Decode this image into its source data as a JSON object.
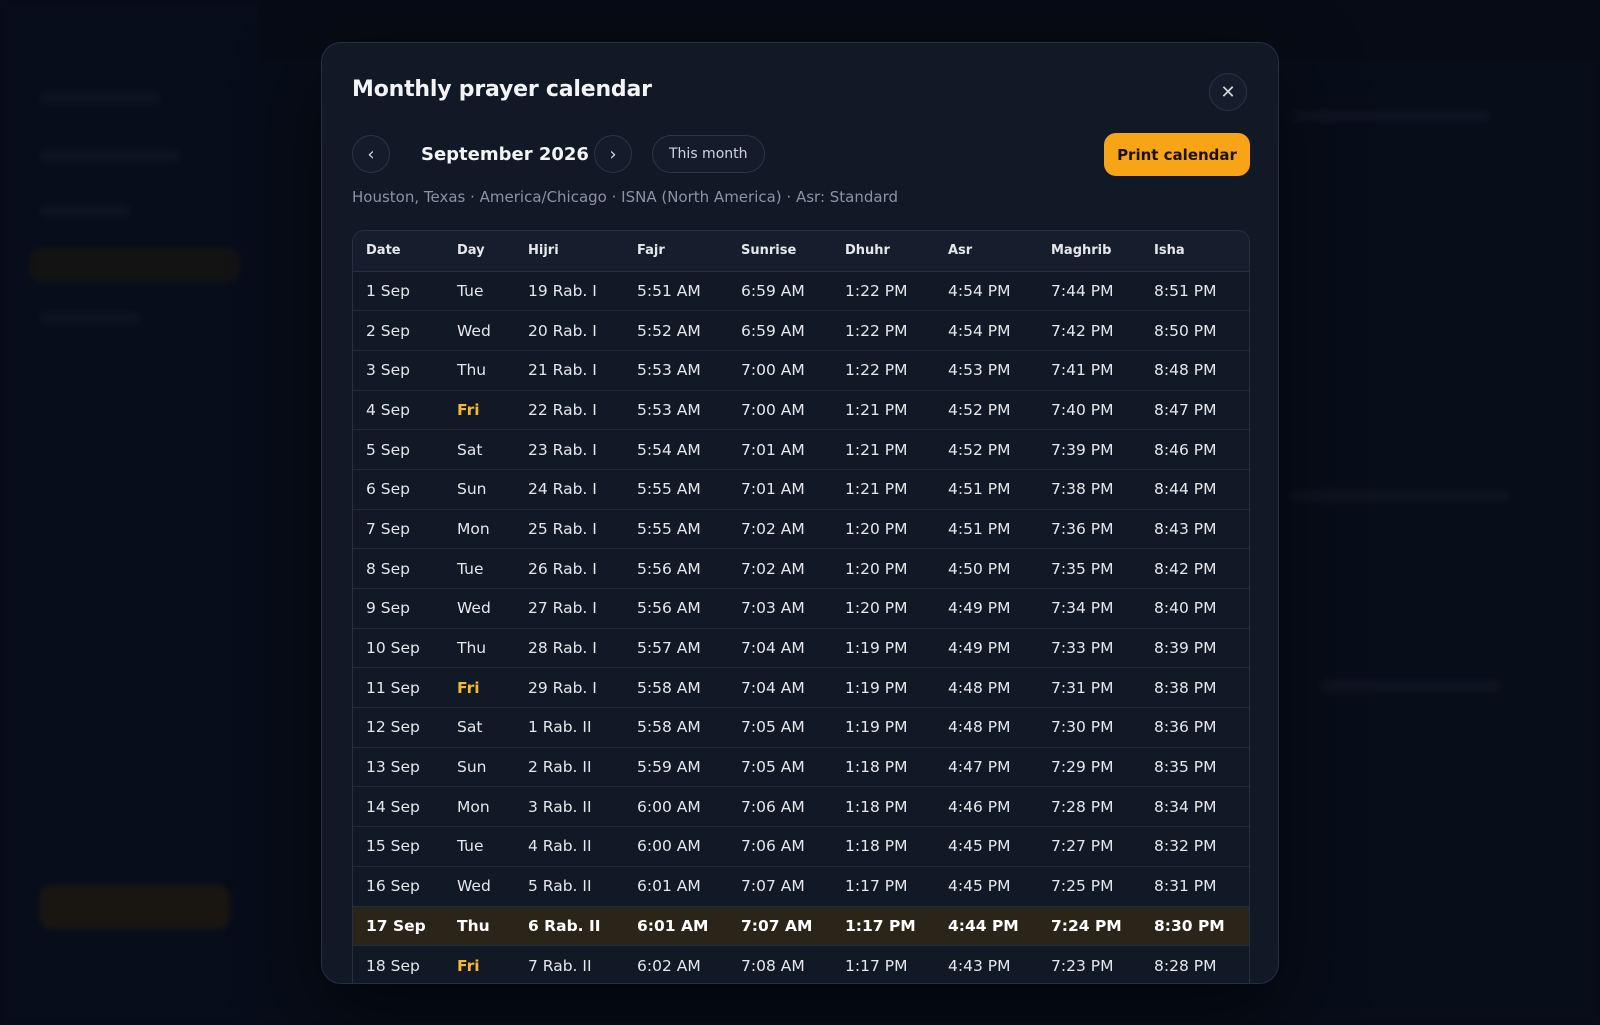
{
  "modal": {
    "title": "Monthly prayer calendar",
    "close_icon": "close-icon",
    "prev_icon": "chevron-left-icon",
    "next_icon": "chevron-right-icon",
    "prev_glyph": "‹",
    "next_glyph": "›",
    "close_glyph": "✕",
    "month_label": "September 2026",
    "this_month_label": "This month",
    "print_label": "Print calendar",
    "meta": "Houston, Texas · America/Chicago · ISNA (North America) · Asr: Standard"
  },
  "colors": {
    "accent": "#f7a416",
    "friday": "#f5b82e",
    "today_row": "#2a2518",
    "modal_bg": "#111826"
  },
  "table": {
    "columns": [
      "Date",
      "Day",
      "Hijri",
      "Fajr",
      "Sunrise",
      "Dhuhr",
      "Asr",
      "Maghrib",
      "Isha"
    ],
    "today_index": 16,
    "rows": [
      [
        "1 Sep",
        "Tue",
        "19 Rab. I",
        "5:51 AM",
        "6:59 AM",
        "1:22 PM",
        "4:54 PM",
        "7:44 PM",
        "8:51 PM"
      ],
      [
        "2 Sep",
        "Wed",
        "20 Rab. I",
        "5:52 AM",
        "6:59 AM",
        "1:22 PM",
        "4:54 PM",
        "7:42 PM",
        "8:50 PM"
      ],
      [
        "3 Sep",
        "Thu",
        "21 Rab. I",
        "5:53 AM",
        "7:00 AM",
        "1:22 PM",
        "4:53 PM",
        "7:41 PM",
        "8:48 PM"
      ],
      [
        "4 Sep",
        "Fri",
        "22 Rab. I",
        "5:53 AM",
        "7:00 AM",
        "1:21 PM",
        "4:52 PM",
        "7:40 PM",
        "8:47 PM"
      ],
      [
        "5 Sep",
        "Sat",
        "23 Rab. I",
        "5:54 AM",
        "7:01 AM",
        "1:21 PM",
        "4:52 PM",
        "7:39 PM",
        "8:46 PM"
      ],
      [
        "6 Sep",
        "Sun",
        "24 Rab. I",
        "5:55 AM",
        "7:01 AM",
        "1:21 PM",
        "4:51 PM",
        "7:38 PM",
        "8:44 PM"
      ],
      [
        "7 Sep",
        "Mon",
        "25 Rab. I",
        "5:55 AM",
        "7:02 AM",
        "1:20 PM",
        "4:51 PM",
        "7:36 PM",
        "8:43 PM"
      ],
      [
        "8 Sep",
        "Tue",
        "26 Rab. I",
        "5:56 AM",
        "7:02 AM",
        "1:20 PM",
        "4:50 PM",
        "7:35 PM",
        "8:42 PM"
      ],
      [
        "9 Sep",
        "Wed",
        "27 Rab. I",
        "5:56 AM",
        "7:03 AM",
        "1:20 PM",
        "4:49 PM",
        "7:34 PM",
        "8:40 PM"
      ],
      [
        "10 Sep",
        "Thu",
        "28 Rab. I",
        "5:57 AM",
        "7:04 AM",
        "1:19 PM",
        "4:49 PM",
        "7:33 PM",
        "8:39 PM"
      ],
      [
        "11 Sep",
        "Fri",
        "29 Rab. I",
        "5:58 AM",
        "7:04 AM",
        "1:19 PM",
        "4:48 PM",
        "7:31 PM",
        "8:38 PM"
      ],
      [
        "12 Sep",
        "Sat",
        "1 Rab. II",
        "5:58 AM",
        "7:05 AM",
        "1:19 PM",
        "4:48 PM",
        "7:30 PM",
        "8:36 PM"
      ],
      [
        "13 Sep",
        "Sun",
        "2 Rab. II",
        "5:59 AM",
        "7:05 AM",
        "1:18 PM",
        "4:47 PM",
        "7:29 PM",
        "8:35 PM"
      ],
      [
        "14 Sep",
        "Mon",
        "3 Rab. II",
        "6:00 AM",
        "7:06 AM",
        "1:18 PM",
        "4:46 PM",
        "7:28 PM",
        "8:34 PM"
      ],
      [
        "15 Sep",
        "Tue",
        "4 Rab. II",
        "6:00 AM",
        "7:06 AM",
        "1:18 PM",
        "4:45 PM",
        "7:27 PM",
        "8:32 PM"
      ],
      [
        "16 Sep",
        "Wed",
        "5 Rab. II",
        "6:01 AM",
        "7:07 AM",
        "1:17 PM",
        "4:45 PM",
        "7:25 PM",
        "8:31 PM"
      ],
      [
        "17 Sep",
        "Thu",
        "6 Rab. II",
        "6:01 AM",
        "7:07 AM",
        "1:17 PM",
        "4:44 PM",
        "7:24 PM",
        "8:30 PM"
      ],
      [
        "18 Sep",
        "Fri",
        "7 Rab. II",
        "6:02 AM",
        "7:08 AM",
        "1:17 PM",
        "4:43 PM",
        "7:23 PM",
        "8:28 PM"
      ]
    ]
  }
}
